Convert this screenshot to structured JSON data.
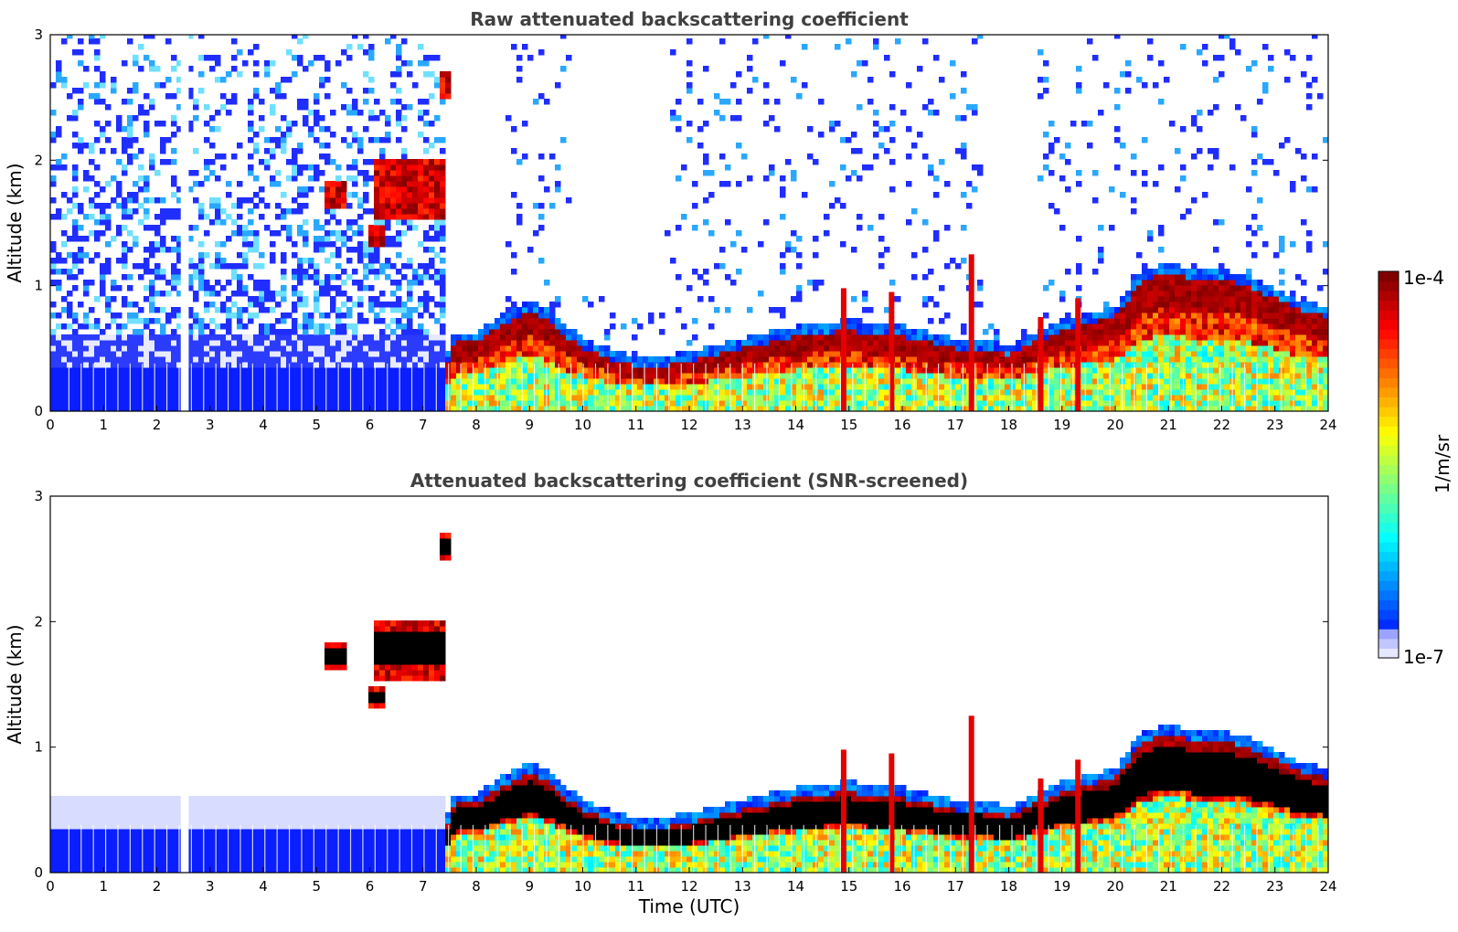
{
  "chart_data": [
    {
      "type": "heatmap",
      "title": "Raw attenuated backscattering coefficient",
      "xlabel": "",
      "ylabel": "Altitude (km)",
      "xlim": [
        0,
        24
      ],
      "ylim": [
        0,
        3
      ],
      "xticks": [
        "0",
        "1",
        "2",
        "3",
        "4",
        "5",
        "6",
        "7",
        "8",
        "9",
        "10",
        "11",
        "12",
        "13",
        "14",
        "15",
        "16",
        "17",
        "18",
        "19",
        "20",
        "21",
        "22",
        "23",
        "24"
      ],
      "yticks": [
        "0",
        "1",
        "2",
        "3"
      ],
      "screened": false,
      "background": "noisy"
    },
    {
      "type": "heatmap",
      "title": "Attenuated backscattering coefficient (SNR-screened)",
      "xlabel": "Time (UTC)",
      "ylabel": "Altitude (km)",
      "xlim": [
        0,
        24
      ],
      "ylim": [
        0,
        3
      ],
      "xticks": [
        "0",
        "1",
        "2",
        "3",
        "4",
        "5",
        "6",
        "7",
        "8",
        "9",
        "10",
        "11",
        "12",
        "13",
        "14",
        "15",
        "16",
        "17",
        "18",
        "19",
        "20",
        "21",
        "22",
        "23",
        "24"
      ],
      "yticks": [
        "0",
        "1",
        "2",
        "3"
      ],
      "screened": true,
      "background": "white"
    }
  ],
  "colorbar": {
    "label": "1/m/sr",
    "max_label": "1e-4",
    "min_label": "1e-7",
    "colormap": "jet",
    "scale": "log"
  },
  "features": {
    "boundary_layer_top_km": [
      [
        0,
        0.36
      ],
      [
        2,
        0.36
      ],
      [
        4,
        0.36
      ],
      [
        6,
        0.36
      ],
      [
        7.45,
        0.36
      ],
      [
        7.6,
        0.55
      ],
      [
        8,
        0.55
      ],
      [
        8.5,
        0.7
      ],
      [
        9,
        0.8
      ],
      [
        9.4,
        0.72
      ],
      [
        9.7,
        0.6
      ],
      [
        10,
        0.5
      ],
      [
        10.5,
        0.42
      ],
      [
        11,
        0.36
      ],
      [
        11.5,
        0.36
      ],
      [
        12,
        0.4
      ],
      [
        12.5,
        0.45
      ],
      [
        13,
        0.5
      ],
      [
        13.5,
        0.55
      ],
      [
        14,
        0.6
      ],
      [
        14.5,
        0.62
      ],
      [
        15,
        0.65
      ],
      [
        15.5,
        0.6
      ],
      [
        16,
        0.6
      ],
      [
        16.5,
        0.55
      ],
      [
        17,
        0.5
      ],
      [
        17.5,
        0.5
      ],
      [
        18,
        0.45
      ],
      [
        18.5,
        0.55
      ],
      [
        19,
        0.65
      ],
      [
        19.5,
        0.7
      ],
      [
        20,
        0.75
      ],
      [
        20.5,
        1.05
      ],
      [
        21,
        1.1
      ],
      [
        21.5,
        1.05
      ],
      [
        22,
        1.05
      ],
      [
        22.5,
        1.0
      ],
      [
        23,
        0.9
      ],
      [
        23.5,
        0.8
      ],
      [
        24,
        0.75
      ]
    ],
    "spikes": [
      [
        14.9,
        0.98
      ],
      [
        15.8,
        0.95
      ],
      [
        17.3,
        1.25
      ],
      [
        18.6,
        0.75
      ],
      [
        19.3,
        0.9
      ]
    ],
    "elevated_layers": [
      {
        "t0": 5.2,
        "t1": 5.6,
        "z0": 1.6,
        "z1": 1.85
      },
      {
        "t0": 6.0,
        "t1": 6.3,
        "z0": 1.3,
        "z1": 1.5
      },
      {
        "t0": 6.1,
        "t1": 7.4,
        "z0": 1.55,
        "z1": 2.0
      },
      {
        "t0": 7.3,
        "t1": 7.5,
        "z0": 2.5,
        "z1": 2.7
      }
    ],
    "gap_times": [
      2.45,
      2.6
    ]
  }
}
